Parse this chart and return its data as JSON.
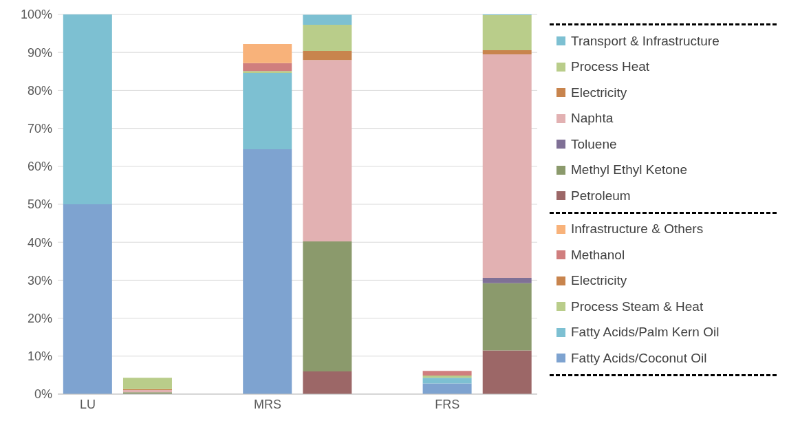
{
  "chart_data": {
    "type": "bar",
    "stacked": true,
    "categories": [
      "LU",
      null,
      null,
      "MRS",
      null,
      null,
      "FRS",
      null
    ],
    "series": [
      {
        "name": "Fatty Acids/Coconut Oil",
        "color": "#7ea3d0",
        "values": [
          50,
          null,
          null,
          64.5,
          null,
          null,
          2.8,
          null
        ]
      },
      {
        "name": "Fatty Acids/Palm Kern Oil",
        "color": "#7dc0d2",
        "values": [
          50,
          null,
          null,
          20.1,
          null,
          null,
          1.5,
          null
        ]
      },
      {
        "name": "Process Steam & Heat",
        "color": "#b9cd8a",
        "values": [
          0,
          null,
          null,
          0.5,
          null,
          null,
          0.6,
          null
        ]
      },
      {
        "name": "Electricity",
        "color": "#c8844d",
        "values": [
          0,
          null,
          null,
          0,
          null,
          null,
          0,
          null
        ]
      },
      {
        "name": "Methanol",
        "color": "#d07e7e",
        "values": [
          0,
          null,
          null,
          2.1,
          null,
          null,
          1.2,
          null
        ]
      },
      {
        "name": "Infrastructure & Others",
        "color": "#f8b27a",
        "values": [
          0,
          null,
          null,
          5.0,
          null,
          null,
          0,
          null
        ]
      },
      {
        "name": "Petroleum",
        "color": "#9c6767",
        "values": [
          null,
          0,
          null,
          null,
          6,
          null,
          null,
          11.5
        ]
      },
      {
        "name": "Methyl Ethyl Ketone",
        "color": "#8b9a6c",
        "values": [
          null,
          0.5,
          null,
          null,
          34.2,
          null,
          null,
          17.7
        ]
      },
      {
        "name": "Toluene",
        "color": "#7f7096",
        "values": [
          null,
          0,
          null,
          null,
          0,
          null,
          null,
          1.4
        ]
      },
      {
        "name": "Naphta",
        "color": "#e2b1b2",
        "values": [
          null,
          0.6,
          null,
          null,
          47.8,
          null,
          null,
          58.9
        ]
      },
      {
        "name": "Electricity",
        "color": "#c8844d",
        "values": [
          null,
          0.2,
          null,
          null,
          2.4,
          null,
          null,
          1.1
        ]
      },
      {
        "name": "Process Heat",
        "color": "#b9cd8a",
        "values": [
          null,
          3.0,
          null,
          null,
          6.9,
          null,
          null,
          9.2
        ]
      },
      {
        "name": "Transport & Infrastructure",
        "color": "#7dc0d2",
        "values": [
          null,
          null,
          null,
          null,
          2.6,
          null,
          null,
          0.2
        ]
      }
    ],
    "ylim": [
      0,
      100
    ],
    "yticks": [
      {
        "value": 0,
        "label": "0%"
      },
      {
        "value": 10,
        "label": "10%"
      },
      {
        "value": 20,
        "label": "20%"
      },
      {
        "value": 30,
        "label": "30%"
      },
      {
        "value": 40,
        "label": "40%"
      },
      {
        "value": 50,
        "label": "50%"
      },
      {
        "value": 60,
        "label": "60%"
      },
      {
        "value": 70,
        "label": "70%"
      },
      {
        "value": 80,
        "label": "80%"
      },
      {
        "value": 90,
        "label": "90%"
      },
      {
        "value": 100,
        "label": "100%"
      }
    ],
    "grid": "y",
    "legend": "right"
  }
}
